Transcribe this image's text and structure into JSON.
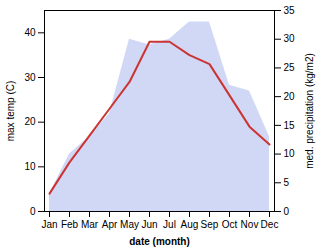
{
  "chart_data": {
    "type": "line",
    "categories": [
      "Jan",
      "Feb",
      "Mar",
      "Apr",
      "May",
      "Jun",
      "Jul",
      "Aug",
      "Sep",
      "Oct",
      "Nov",
      "Dec"
    ],
    "xlabel": "date (month)",
    "ylabel": "max temp (C)",
    "y2label": "med. precipitation (kg/m2)",
    "ylim": [
      0,
      45
    ],
    "yticks": [
      0,
      10,
      20,
      30,
      40
    ],
    "y2lim": [
      0,
      35
    ],
    "y2ticks": [
      0,
      5,
      10,
      15,
      20,
      25,
      30,
      35
    ],
    "grid": false,
    "series": [
      {
        "type": "area",
        "axis": "y2",
        "color": "#b0bef0",
        "values": [
          3,
          10,
          13,
          17,
          30,
          29,
          30,
          33,
          33,
          22,
          21,
          13
        ]
      },
      {
        "type": "line",
        "color": "#cc3333",
        "values": [
          4,
          11,
          17,
          23,
          29,
          38,
          38,
          35,
          33,
          26,
          19,
          15
        ]
      }
    ]
  }
}
